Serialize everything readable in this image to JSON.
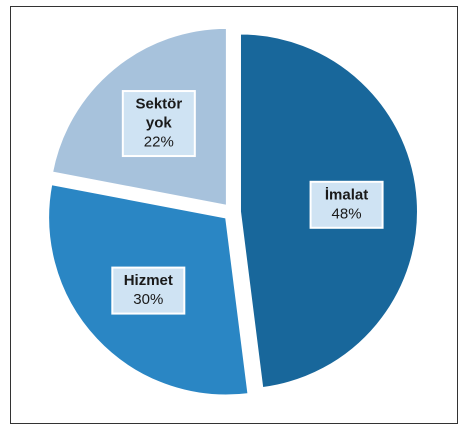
{
  "chart_data": {
    "type": "pie",
    "categories": [
      "İmalat",
      "Hizmet",
      "Sektör yok"
    ],
    "values": [
      48,
      30,
      22
    ],
    "value_labels": [
      "48%",
      "30%",
      "22%"
    ],
    "colors": [
      "#18679b",
      "#2a86c4",
      "#a7c2dc"
    ]
  }
}
